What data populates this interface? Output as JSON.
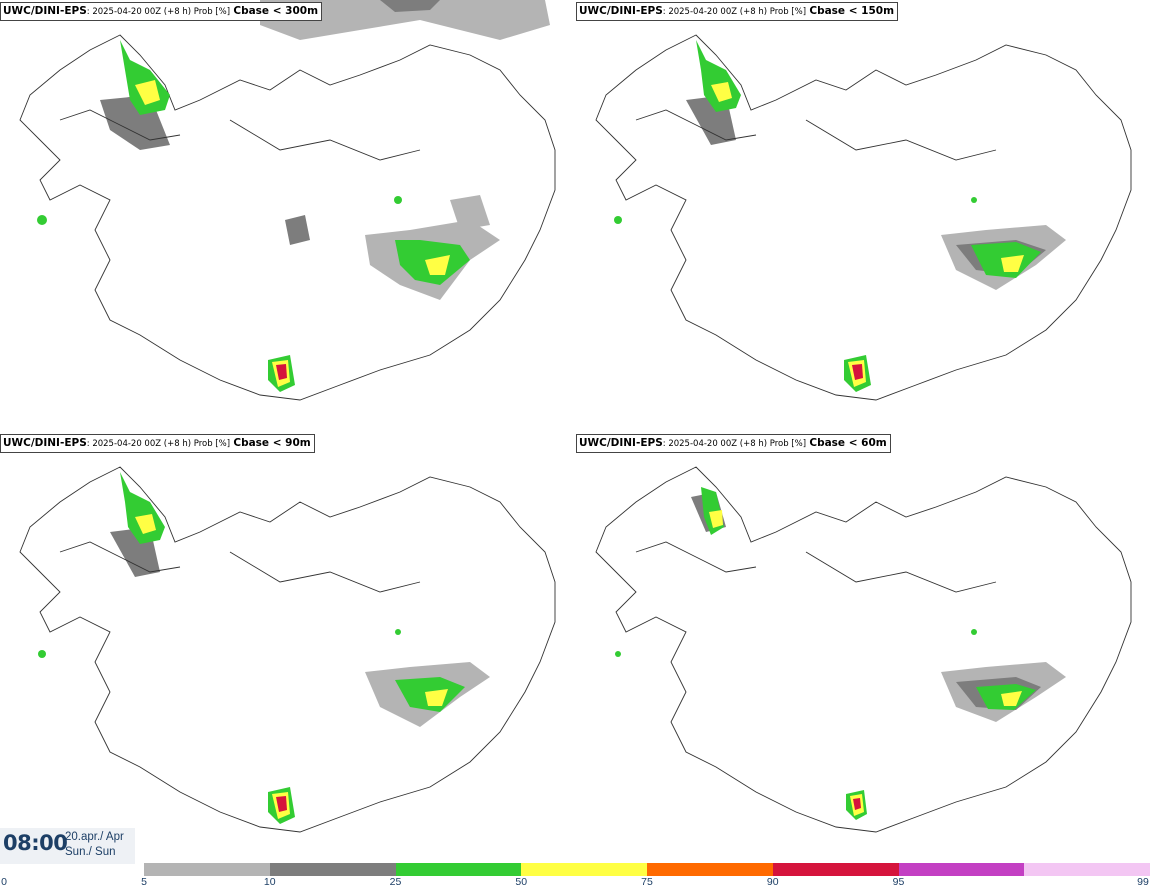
{
  "panels": [
    {
      "model": "UWC/DINI-EPS",
      "meta": ": 2025-04-20 00Z (+8 h) Prob [%]",
      "param": "Cbase < 300m"
    },
    {
      "model": "UWC/DINI-EPS",
      "meta": ": 2025-04-20 00Z (+8 h) Prob [%]",
      "param": "Cbase < 150m"
    },
    {
      "model": "UWC/DINI-EPS",
      "meta": ": 2025-04-20 00Z (+8 h) Prob [%]",
      "param": "Cbase < 90m"
    },
    {
      "model": "UWC/DINI-EPS",
      "meta": ": 2025-04-20 00Z (+8 h) Prob [%]",
      "param": "Cbase < 60m"
    }
  ],
  "valid_time": {
    "clock": "08:00",
    "date_line1": "20.apr./ Apr",
    "date_line2": "Sun./ Sun"
  },
  "legend": {
    "thresholds": [
      "0",
      "5",
      "10",
      "25",
      "50",
      "75",
      "90",
      "95",
      "99"
    ],
    "colors": [
      "#b4b4b4",
      "#7d7d7d",
      "#33cc33",
      "#ffff44",
      "#ff6a00",
      "#d5143c",
      "#c33fc3",
      "#f3c6f3"
    ]
  },
  "colors": {
    "prob_5": "#b4b4b4",
    "prob_10": "#7d7d7d",
    "prob_25": "#33cc33",
    "prob_50": "#ffff44",
    "prob_75": "#ff6a00",
    "prob_90": "#d5143c",
    "coast": "#333333",
    "title_text": "#1d3f66"
  }
}
